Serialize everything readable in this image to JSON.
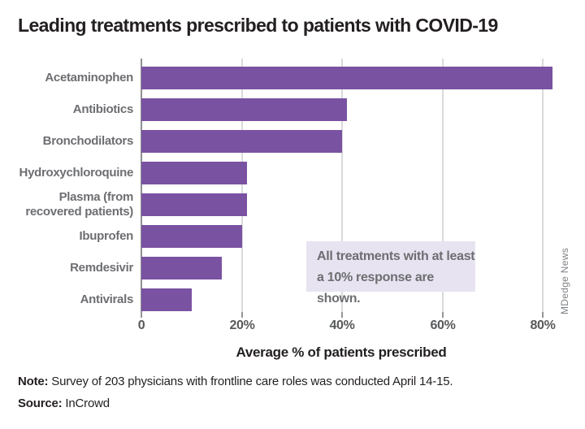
{
  "chart_data": {
    "type": "bar",
    "orientation": "horizontal",
    "title": "Leading treatments prescribed to patients with COVID-19",
    "categories": [
      "Acetaminophen",
      "Antibiotics",
      "Bronchodilators",
      "Hydroxychloroquine",
      "Plasma (from\nrecovered patients)",
      "Ibuprofen",
      "Remdesivir",
      "Antivirals"
    ],
    "values": [
      82,
      41,
      40,
      21,
      21,
      20,
      16,
      10
    ],
    "xlabel": "Average % of patients prescribed",
    "xticks": [
      {
        "label": "0",
        "value": 0
      },
      {
        "label": "20%",
        "value": 20
      },
      {
        "label": "40%",
        "value": 40
      },
      {
        "label": "60%",
        "value": 60
      },
      {
        "label": "80%",
        "value": 80
      }
    ],
    "xlim": [
      0,
      88
    ],
    "grid": true,
    "legend": false,
    "bar_color": "#7a52a2",
    "annotation": "All treatments with at least\na 10% response are shown."
  },
  "footer": {
    "note_label": "Note:",
    "note_text": "Survey of 203 physicians with frontline care roles was conducted April 14-15.",
    "source_label": "Source:",
    "source_text": "InCrowd",
    "watermark": "MDedge News"
  },
  "colors": {
    "bar": "#7a52a2",
    "annotation_bg": "#e8e3f1",
    "label_gray": "#6d6e71",
    "grid": "#d9dadb",
    "axis": "#8e9093"
  }
}
